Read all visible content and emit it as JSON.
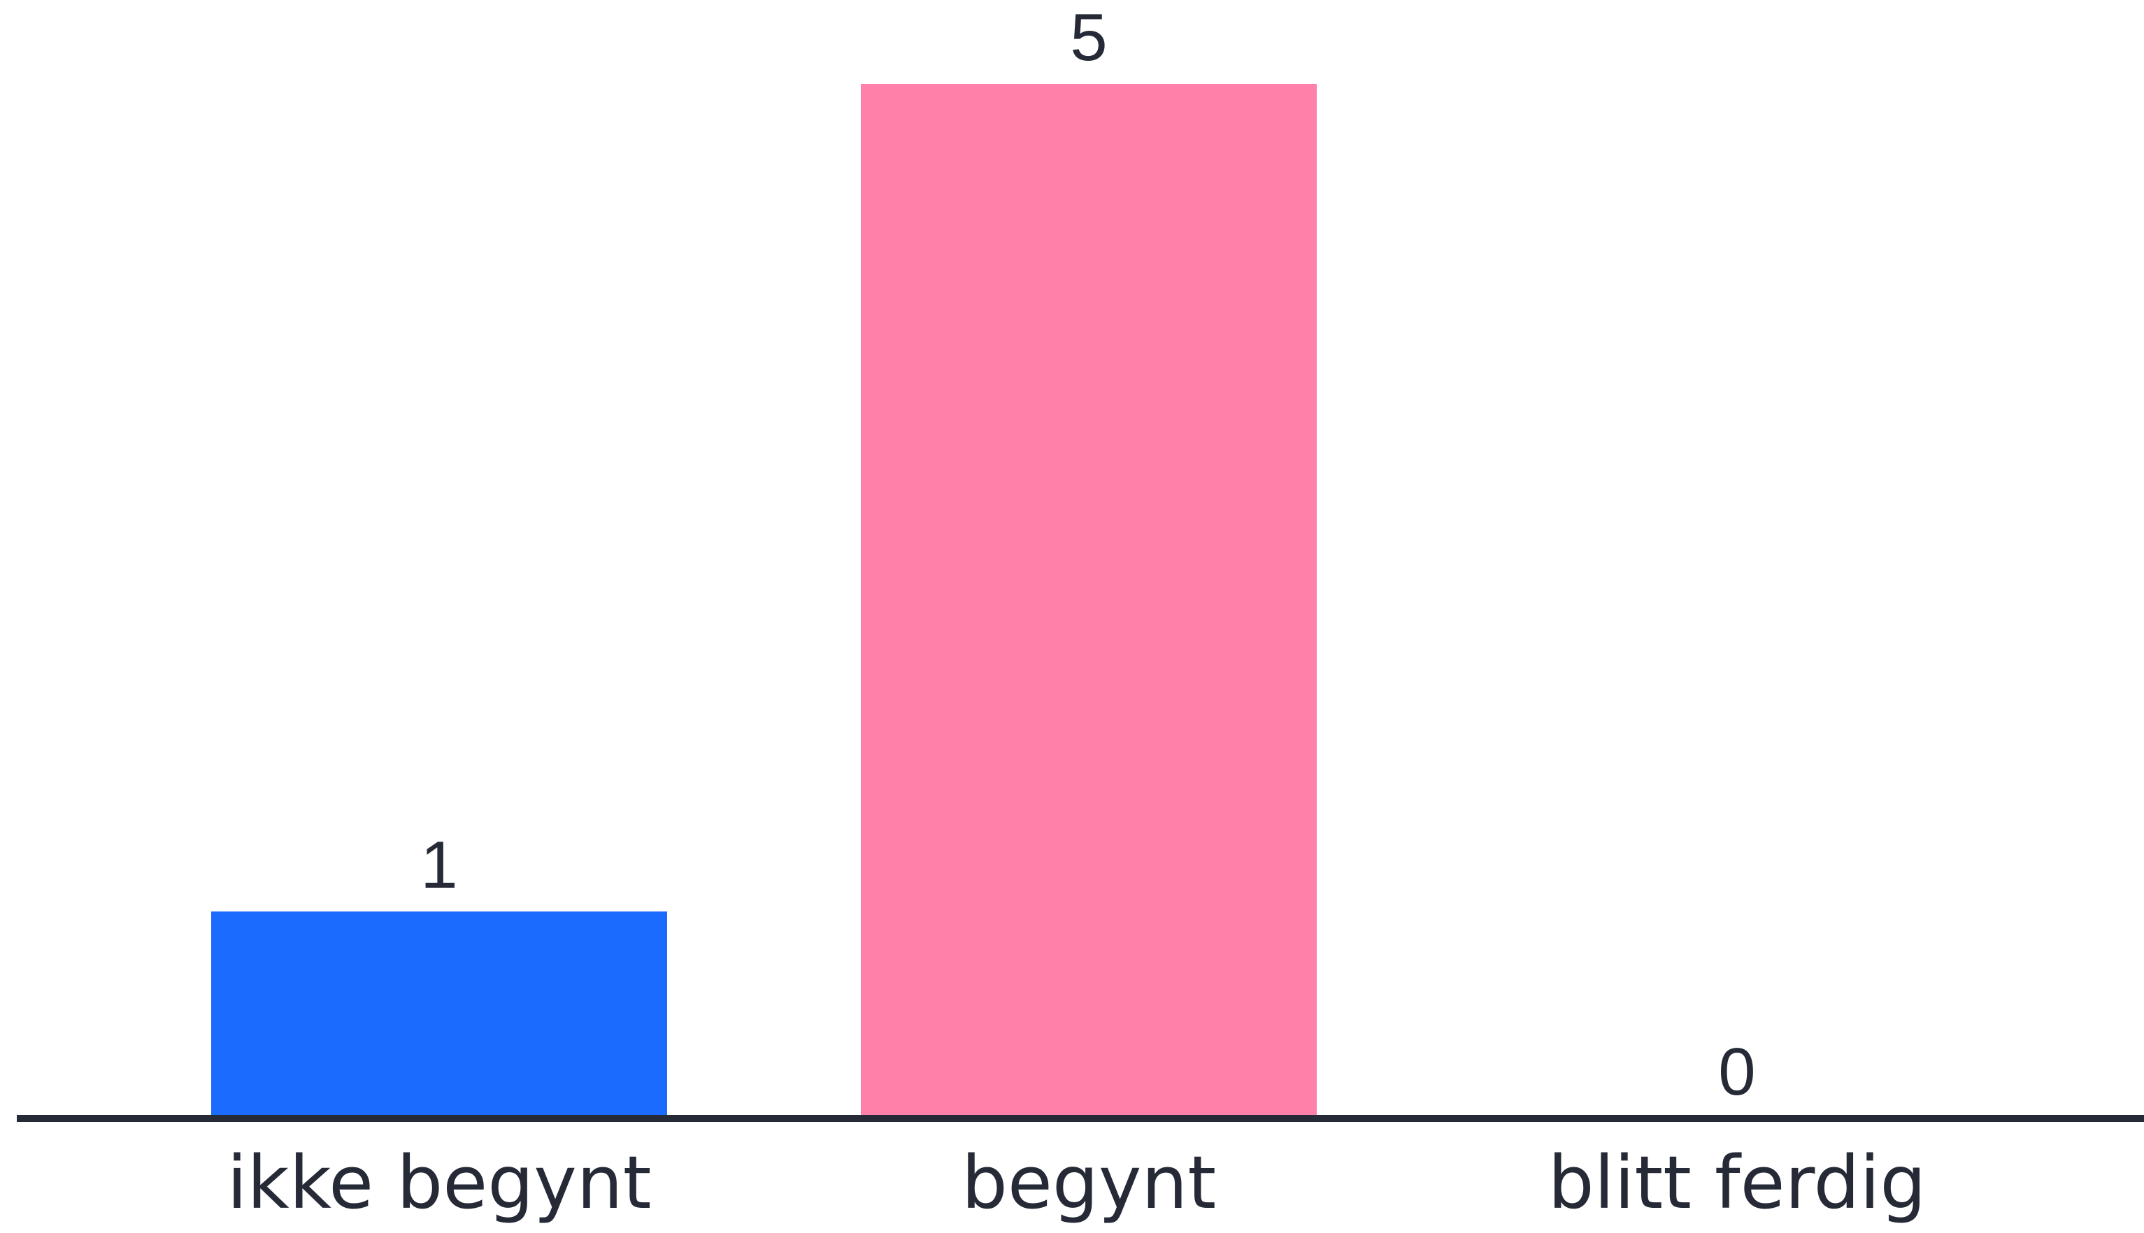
{
  "chart_data": {
    "type": "bar",
    "title": "",
    "xlabel": "",
    "ylabel": "",
    "categories": [
      "ikke begynt",
      "begynt",
      "blitt ferdig"
    ],
    "values": [
      1,
      5,
      0
    ],
    "ylim": [
      0,
      5
    ],
    "grid": false,
    "legend": "none",
    "colors": [
      "#1b6bff",
      "#ff80a8",
      "#1b6bff"
    ],
    "axis_color": "#262a36"
  }
}
